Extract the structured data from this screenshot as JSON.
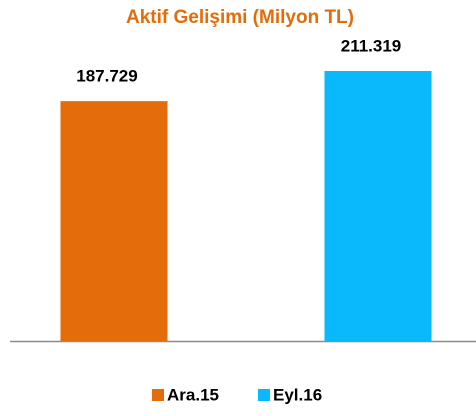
{
  "chart_data": {
    "type": "bar",
    "title": "Aktif Gelişimi (Milyon TL)",
    "categories": [
      "Ara.15",
      "Eyl.16"
    ],
    "values": [
      187729,
      211319
    ],
    "value_labels": [
      "187.729",
      "211.319"
    ],
    "colors": [
      "#e46c0a",
      "#0ab9fb"
    ],
    "title_color": "#e46c0a"
  }
}
